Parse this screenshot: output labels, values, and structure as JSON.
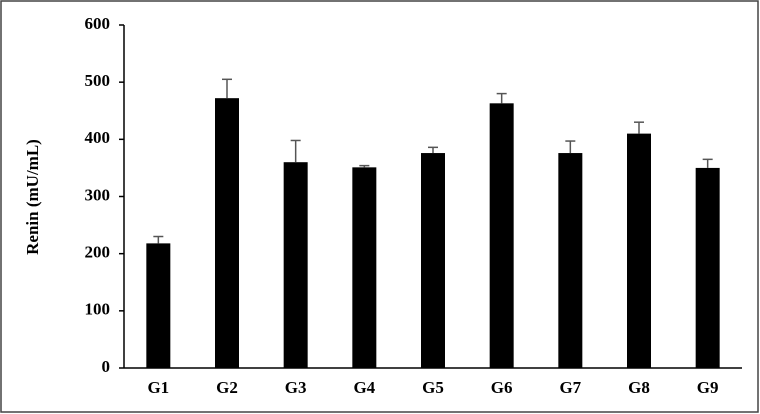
{
  "chart_data": {
    "type": "bar",
    "y_label": "Renin (mU/mL)",
    "categories": [
      "G1",
      "G2",
      "G3",
      "G4",
      "G5",
      "G6",
      "G7",
      "G8",
      "G9"
    ],
    "values": [
      218,
      472,
      360,
      351,
      376,
      463,
      376,
      410,
      350
    ],
    "errors": [
      12,
      33,
      38,
      3,
      10,
      17,
      21,
      20,
      15
    ],
    "color": "#000000",
    "ylim": [
      0,
      600
    ],
    "yticks": [
      0,
      100,
      200,
      300,
      400,
      500,
      600
    ],
    "grid": false
  }
}
